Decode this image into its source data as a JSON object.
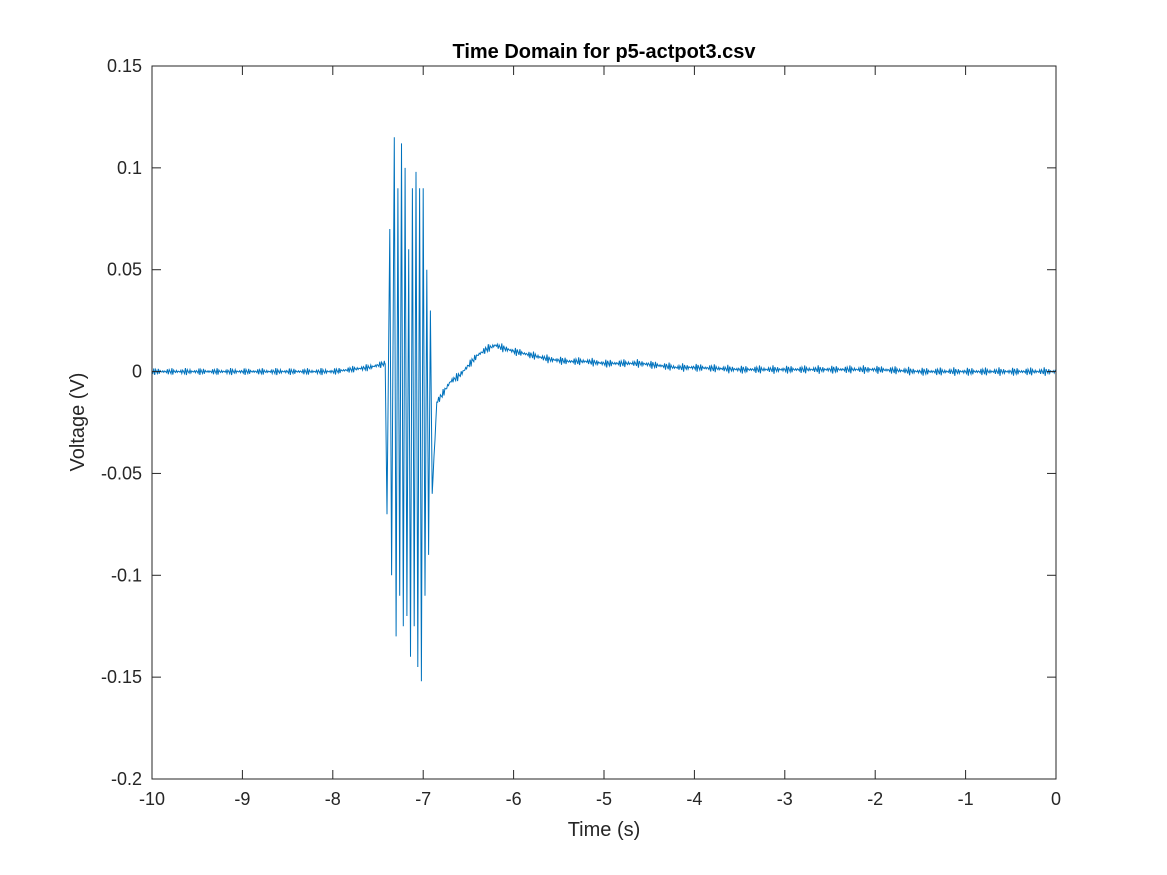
{
  "chart_data": {
    "type": "line",
    "title": "Time Domain for p5-actpot3.csv",
    "xlabel": "Time (s)",
    "ylabel": "Voltage (V)",
    "xlim": [
      -10,
      0
    ],
    "ylim": [
      -0.2,
      0.15
    ],
    "xticks": [
      -10,
      -9,
      -8,
      -7,
      -6,
      -5,
      -4,
      -3,
      -2,
      -1,
      0
    ],
    "xtick_labels": [
      "-10",
      "-9",
      "-8",
      "-7",
      "-6",
      "-5",
      "-4",
      "-3",
      "-2",
      "-1",
      "0"
    ],
    "yticks": [
      -0.2,
      -0.15,
      -0.1,
      -0.05,
      0,
      0.05,
      0.1,
      0.15
    ],
    "ytick_labels": [
      "-0.2",
      "-0.15",
      "-0.1",
      "-0.05",
      "0",
      "0.05",
      "0.1",
      "0.15"
    ],
    "grid": false,
    "line_color": "#0072BD",
    "series": [
      {
        "x": [
          -10,
          -9.5,
          -9,
          -8.5,
          -8,
          -7.6,
          -7.42,
          -7.4,
          -7.37,
          -7.35,
          -7.32,
          -7.3,
          -7.28,
          -7.26,
          -7.24,
          -7.22,
          -7.2,
          -7.18,
          -7.16,
          -7.14,
          -7.12,
          -7.1,
          -7.08,
          -7.06,
          -7.04,
          -7.02,
          -7.0,
          -6.98,
          -6.96,
          -6.94,
          -6.92,
          -6.9,
          -6.85,
          -6.8,
          -6.7,
          -6.6,
          -6.5,
          -6.4,
          -6.3,
          -6.2,
          -6.15,
          -6.0,
          -5.8,
          -5.6,
          -5.4,
          -5.2,
          -5.0,
          -4.8,
          -4.6,
          -4.4,
          -4.2,
          -4.0,
          -3.5,
          -3.0,
          -2.5,
          -2.0,
          -1.5,
          -1.0,
          -0.5,
          0
        ],
        "y": [
          0,
          0,
          0,
          0,
          0,
          0.002,
          0.004,
          -0.07,
          0.07,
          -0.1,
          0.115,
          -0.13,
          0.09,
          -0.11,
          0.112,
          -0.125,
          0.1,
          -0.12,
          0.06,
          -0.14,
          0.09,
          -0.125,
          0.098,
          -0.145,
          0.09,
          -0.152,
          0.09,
          -0.11,
          0.05,
          -0.09,
          0.03,
          -0.06,
          -0.015,
          -0.012,
          -0.005,
          -0.002,
          0.003,
          0.008,
          0.011,
          0.013,
          0.012,
          0.01,
          0.008,
          0.006,
          0.005,
          0.005,
          0.004,
          0.004,
          0.004,
          0.003,
          0.002,
          0.002,
          0.001,
          0.001,
          0.001,
          0.001,
          0,
          0,
          0,
          0
        ]
      }
    ]
  }
}
